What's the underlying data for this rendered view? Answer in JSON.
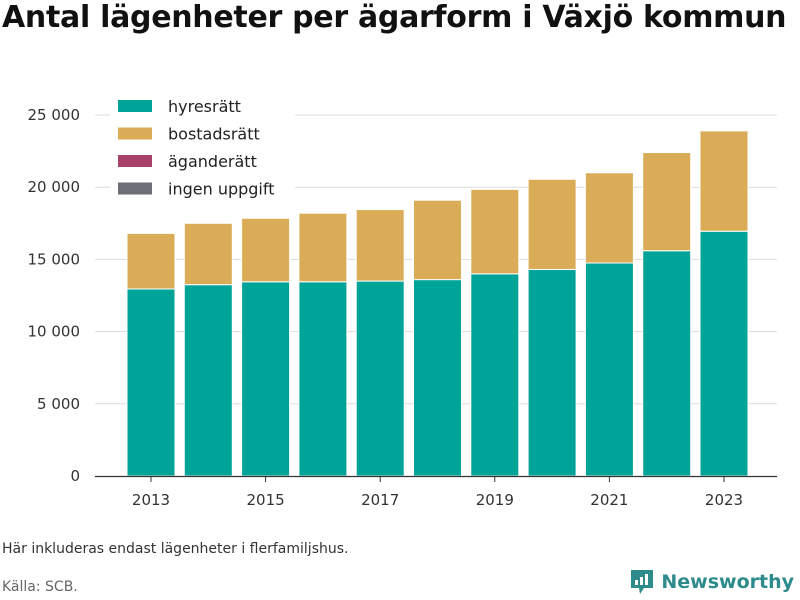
{
  "chart_data": {
    "type": "bar",
    "stacked": true,
    "title": "Antal lägenheter per ägarform i Växjö kommun",
    "xlabel": "",
    "ylabel": "",
    "x": [
      2013,
      2014,
      2015,
      2016,
      2017,
      2018,
      2019,
      2020,
      2021,
      2022,
      2023
    ],
    "x_tick_labels": [
      "2013",
      "2015",
      "2017",
      "2019",
      "2021",
      "2023"
    ],
    "x_tick_values": [
      2013,
      2015,
      2017,
      2019,
      2021,
      2023
    ],
    "ylim": [
      0,
      25000
    ],
    "y_ticks": [
      0,
      5000,
      10000,
      15000,
      20000,
      25000
    ],
    "y_tick_labels": [
      "0",
      "5 000",
      "10 000",
      "15 000",
      "20 000",
      "25 000"
    ],
    "grid": true,
    "legend_position": "top-left",
    "series": [
      {
        "name": "hyresrätt",
        "color": "#00a398",
        "values": [
          12950,
          13250,
          13450,
          13450,
          13500,
          13600,
          14000,
          14300,
          14750,
          15600,
          16950
        ]
      },
      {
        "name": "bostadsrätt",
        "color": "#daac58",
        "values": [
          3850,
          4250,
          4400,
          4750,
          4950,
          5500,
          5850,
          6250,
          6250,
          6800,
          6950
        ]
      },
      {
        "name": "äganderätt",
        "color": "#a8426b",
        "values": [
          0,
          0,
          0,
          0,
          0,
          0,
          0,
          0,
          0,
          0,
          0
        ]
      },
      {
        "name": "ingen uppgift",
        "color": "#6e6e76",
        "values": [
          0,
          0,
          0,
          0,
          0,
          0,
          0,
          0,
          0,
          0,
          0
        ]
      }
    ]
  },
  "note": "Här inkluderas endast lägenheter i flerfamiljshus.",
  "source": "Källa: SCB.",
  "brand": {
    "name": "Newsworthy",
    "icon": "newsworthy-logo-icon",
    "color": "#2e8b8b"
  }
}
